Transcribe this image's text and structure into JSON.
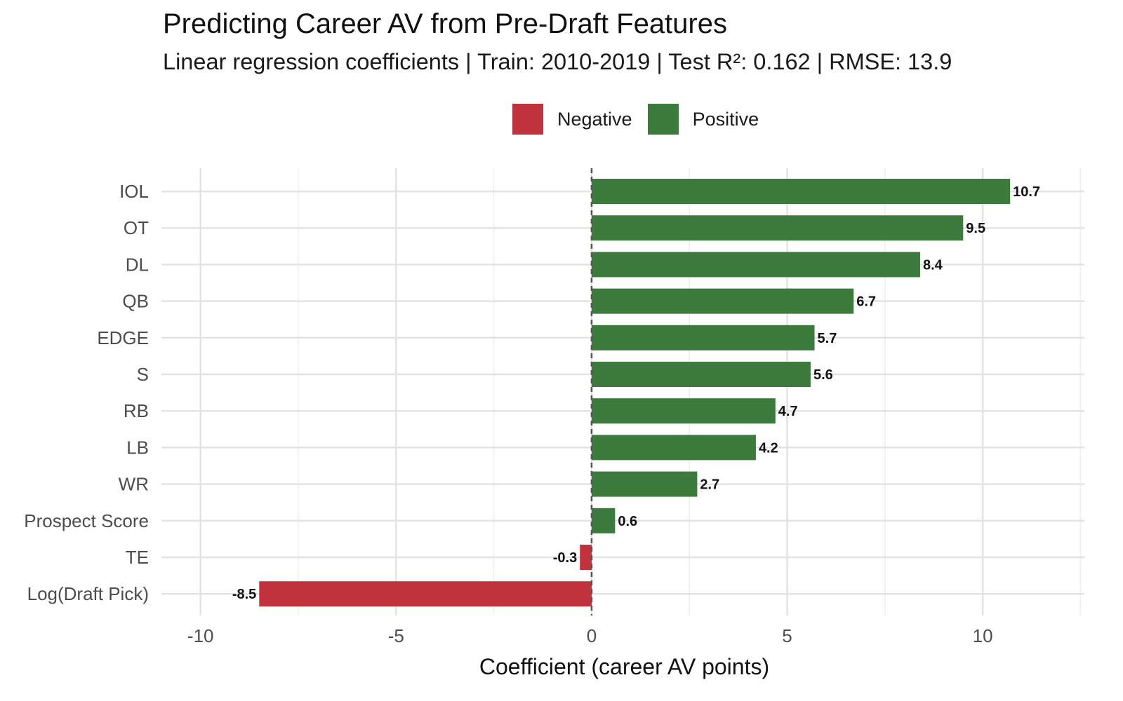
{
  "chart_data": {
    "type": "bar",
    "orientation": "horizontal",
    "title": "Predicting Career AV from Pre-Draft Features",
    "subtitle": "Linear regression coefficients | Train: 2010-2019 | Test R²: 0.162 | RMSE: 13.9",
    "xlabel": "Coefficient (career AV points)",
    "ylabel": "",
    "xlim": [
      -11,
      12.6
    ],
    "xticks": [
      -10,
      -5,
      0,
      5,
      10
    ],
    "xtick_labels": [
      "-10",
      "-5",
      "0",
      "5",
      "10"
    ],
    "grid": true,
    "zero_line": "dashed",
    "legend": {
      "placement": "top-center",
      "entries": [
        {
          "label": "Negative",
          "color": "#c0323c"
        },
        {
          "label": "Positive",
          "color": "#3c7a3e"
        }
      ]
    },
    "categories": [
      "IOL",
      "OT",
      "DL",
      "QB",
      "EDGE",
      "S",
      "RB",
      "LB",
      "WR",
      "Prospect Score",
      "TE",
      "Log(Draft Pick)"
    ],
    "values": [
      10.7,
      9.5,
      8.4,
      6.7,
      5.7,
      5.6,
      4.7,
      4.2,
      2.7,
      0.6,
      -0.3,
      -8.5
    ],
    "value_labels": [
      "10.7",
      "9.5",
      "8.4",
      "6.7",
      "5.7",
      "5.6",
      "4.7",
      "4.2",
      "2.7",
      "0.6",
      "-0.3",
      "-8.5"
    ],
    "colors": {
      "positive": "#3c7a3e",
      "negative": "#c0323c",
      "grid_major": "#e3e3e3",
      "grid_minor": "#eeeeee",
      "zero_line": "#555555"
    }
  }
}
